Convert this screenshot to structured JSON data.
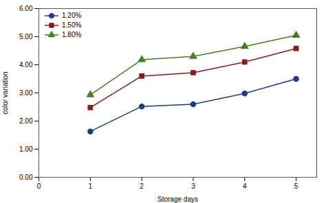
{
  "chart_data": {
    "type": "line",
    "x": [
      1,
      2,
      3,
      4,
      5
    ],
    "series": [
      {
        "name": "1.20%",
        "color": "#1c3b8c",
        "marker": "circle",
        "values": [
          1.63,
          2.52,
          2.6,
          2.98,
          3.5
        ],
        "errors": [
          0.06,
          0.08,
          0.07,
          0.07,
          0.08
        ]
      },
      {
        "name": "1.50%",
        "color": "#8b1a1a",
        "marker": "square",
        "values": [
          2.48,
          3.6,
          3.72,
          4.1,
          4.58
        ],
        "errors": [
          0.07,
          0.08,
          0.08,
          0.07,
          0.07
        ]
      },
      {
        "name": "1.80%",
        "color": "#4a7c20",
        "marker": "triangle",
        "values": [
          2.93,
          4.18,
          4.3,
          4.65,
          5.05
        ],
        "errors": [
          0.07,
          0.08,
          0.08,
          0.07,
          0.07
        ]
      }
    ],
    "xlabel": "Storage days",
    "ylabel": "color variation",
    "xlim": [
      0,
      5.4
    ],
    "xticks": [
      0,
      1,
      2,
      3,
      4,
      5
    ],
    "ylim": [
      0,
      6
    ],
    "yticks": [
      {
        "value": 0,
        "label": "0.00"
      },
      {
        "value": 1,
        "label": "1.00"
      },
      {
        "value": 2,
        "label": "2.00"
      },
      {
        "value": 3,
        "label": "3.00"
      },
      {
        "value": 4,
        "label": "4.00"
      },
      {
        "value": 5,
        "label": "5.00"
      },
      {
        "value": 6,
        "label": "6.00"
      }
    ],
    "legend": "upper left",
    "grid": false
  }
}
